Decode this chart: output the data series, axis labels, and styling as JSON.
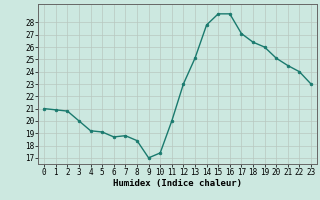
{
  "x": [
    0,
    1,
    2,
    3,
    4,
    5,
    6,
    7,
    8,
    9,
    10,
    11,
    12,
    13,
    14,
    15,
    16,
    17,
    18,
    19,
    20,
    21,
    22,
    23
  ],
  "y": [
    21.0,
    20.9,
    20.8,
    20.0,
    19.2,
    19.1,
    18.7,
    18.8,
    18.4,
    17.0,
    17.4,
    20.0,
    23.0,
    25.1,
    27.8,
    28.7,
    28.7,
    27.1,
    26.4,
    26.0,
    25.1,
    24.5,
    24.0,
    23.0
  ],
  "line_color": "#1a7a6e",
  "marker": "o",
  "marker_size": 2.0,
  "background_color": "#cce8e0",
  "grid_color": "#b8c8c0",
  "xlabel": "Humidex (Indice chaleur)",
  "ylabel": "",
  "xlim": [
    -0.5,
    23.5
  ],
  "ylim": [
    16.5,
    29.5
  ],
  "xticks": [
    0,
    1,
    2,
    3,
    4,
    5,
    6,
    7,
    8,
    9,
    10,
    11,
    12,
    13,
    14,
    15,
    16,
    17,
    18,
    19,
    20,
    21,
    22,
    23
  ],
  "yticks": [
    17,
    18,
    19,
    20,
    21,
    22,
    23,
    24,
    25,
    26,
    27,
    28
  ],
  "tick_fontsize": 5.5,
  "xlabel_fontsize": 6.5,
  "line_width": 1.0
}
